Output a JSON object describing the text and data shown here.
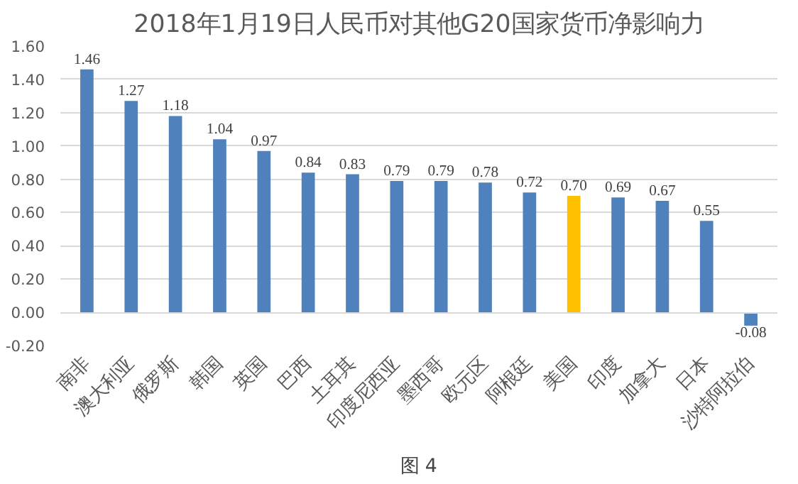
{
  "chart_data": {
    "type": "bar",
    "title": "2018年1月19日人民币对其他G20国家货币净影响力",
    "categories": [
      "南非",
      "澳大利亚",
      "俄罗斯",
      "韩国",
      "英国",
      "巴西",
      "土耳其",
      "印度尼西亚",
      "墨西哥",
      "欧元区",
      "阿根廷",
      "美国",
      "印度",
      "加拿大",
      "日本",
      "沙特阿拉伯"
    ],
    "values": [
      1.46,
      1.27,
      1.18,
      1.04,
      0.97,
      0.84,
      0.83,
      0.79,
      0.79,
      0.78,
      0.72,
      0.7,
      0.69,
      0.67,
      0.55,
      -0.08
    ],
    "value_labels": [
      "1.46",
      "1.27",
      "1.18",
      "1.04",
      "0.97",
      "0.84",
      "0.83",
      "0.79",
      "0.79",
      "0.78",
      "0.72",
      "0.70",
      "0.69",
      "0.67",
      "0.55",
      "-0.08"
    ],
    "colors": [
      "#4f81bd",
      "#4f81bd",
      "#4f81bd",
      "#4f81bd",
      "#4f81bd",
      "#4f81bd",
      "#4f81bd",
      "#4f81bd",
      "#4f81bd",
      "#4f81bd",
      "#4f81bd",
      "#ffc000",
      "#4f81bd",
      "#4f81bd",
      "#4f81bd",
      "#4f81bd"
    ],
    "ylim": [
      -0.2,
      1.6
    ],
    "yticks": [
      {
        "value": -0.2,
        "label": "-0.20"
      },
      {
        "value": 0,
        "label": "0.00"
      },
      {
        "value": 0.2,
        "label": "0.20"
      },
      {
        "value": 0.4,
        "label": "0.40"
      },
      {
        "value": 0.6,
        "label": "0.60"
      },
      {
        "value": 0.8,
        "label": "0.80"
      },
      {
        "value": 1.0,
        "label": "1.00"
      },
      {
        "value": 1.2,
        "label": "1.20"
      },
      {
        "value": 1.4,
        "label": "1.40"
      },
      {
        "value": 1.6,
        "label": "1.60"
      }
    ],
    "grid": "y",
    "annotations": [
      "图 4"
    ]
  }
}
